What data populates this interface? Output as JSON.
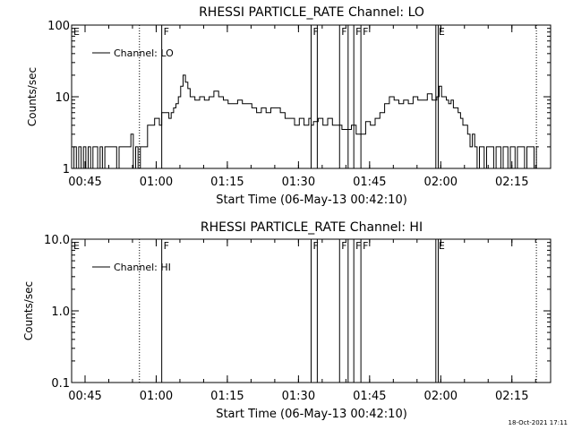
{
  "footer": {
    "timestamp": "18-Oct-2021 17:11"
  },
  "chart_data": [
    {
      "type": "line",
      "title": "RHESSI PARTICLE_RATE Channel: LO",
      "xlabel": "Start Time (06-May-13 00:42:10)",
      "ylabel": "Counts/sec",
      "yscale": "log",
      "ylim": [
        1,
        100
      ],
      "xlim_minutes": [
        0.0,
        101.0
      ],
      "xticks": [
        "00:45",
        "01:00",
        "01:15",
        "01:30",
        "01:45",
        "02:00",
        "02:15"
      ],
      "yticks": [
        "1",
        "10",
        "100"
      ],
      "legend": {
        "entries": [
          "Channel: LO"
        ],
        "placement": "top-left"
      },
      "markers": {
        "E": [
          0.0,
          77.0
        ],
        "F": [
          19.0,
          50.5,
          56.5,
          59.5,
          61.0
        ],
        "dotted_lines": [
          14.3,
          98.0
        ],
        "solid_lines": [
          19.0,
          50.5,
          51.8,
          56.5,
          58.3,
          59.5,
          61.0,
          76.8,
          77.3
        ]
      },
      "series": [
        {
          "name": "Channel: LO",
          "x": [
            0.0,
            0.5,
            1.0,
            1.5,
            2.0,
            2.5,
            3.0,
            3.5,
            4.0,
            4.5,
            5.0,
            5.5,
            6.0,
            6.5,
            7.0,
            7.5,
            8.0,
            8.5,
            9.0,
            9.5,
            10.0,
            10.5,
            11.0,
            11.5,
            12.0,
            12.5,
            13.0,
            13.5,
            14.0,
            14.5,
            15.0,
            15.5,
            16.0,
            16.5,
            17.0,
            17.5,
            18.0,
            18.5,
            19.0,
            19.5,
            20.0,
            20.5,
            21.0,
            21.5,
            22.0,
            22.5,
            23.0,
            23.5,
            24.0,
            24.5,
            25.0,
            26.0,
            27.0,
            28.0,
            29.0,
            30.0,
            31.0,
            32.0,
            33.0,
            34.0,
            35.0,
            36.0,
            37.0,
            38.0,
            39.0,
            40.0,
            41.0,
            42.0,
            43.0,
            44.0,
            45.0,
            46.0,
            47.0,
            48.0,
            49.0,
            50.0,
            50.5,
            51.0,
            52.0,
            53.0,
            54.0,
            55.0,
            56.0,
            57.0,
            58.0,
            59.0,
            60.0,
            61.0,
            62.0,
            63.0,
            64.0,
            65.0,
            66.0,
            67.0,
            68.0,
            69.0,
            70.0,
            71.0,
            72.0,
            73.0,
            74.0,
            75.0,
            76.0,
            77.0,
            77.5,
            78.0,
            78.5,
            79.0,
            79.5,
            80.0,
            80.5,
            81.0,
            81.5,
            82.0,
            82.5,
            83.0,
            83.5,
            84.0,
            84.5,
            85.0,
            85.5,
            86.0,
            86.5,
            87.0,
            87.5,
            88.0,
            88.5,
            89.0,
            89.5,
            90.0,
            90.5,
            91.0,
            91.5,
            92.0,
            92.5,
            93.0,
            93.5,
            94.0,
            94.5,
            95.0,
            95.5,
            96.0,
            96.5,
            97.0,
            97.5,
            98.0
          ],
          "values": [
            1.0,
            2.0,
            1.0,
            2.0,
            1.0,
            2.0,
            1.0,
            2.0,
            1.0,
            2.0,
            2.0,
            1.0,
            2.0,
            1.0,
            2.0,
            2.0,
            2.0,
            2.0,
            2.0,
            1.0,
            2.0,
            2.0,
            2.0,
            2.0,
            2.0,
            3.0,
            1.0,
            2.0,
            1.0,
            2.0,
            2.0,
            2.0,
            4.0,
            4.0,
            4.0,
            5.0,
            5.0,
            4.0,
            6.0,
            6.0,
            6.0,
            5.0,
            6.0,
            7.0,
            8.0,
            10.0,
            14.0,
            20.0,
            16.0,
            13.0,
            10.0,
            9.0,
            10.0,
            9.0,
            10.0,
            12.0,
            10.0,
            9.0,
            8.0,
            8.0,
            9.0,
            8.0,
            8.0,
            7.0,
            6.0,
            7.0,
            6.0,
            7.0,
            7.0,
            6.0,
            5.0,
            5.0,
            4.0,
            5.0,
            4.0,
            5.0,
            4.0,
            4.5,
            5.0,
            4.0,
            5.0,
            4.0,
            4.0,
            3.5,
            3.5,
            4.0,
            3.0,
            3.0,
            4.5,
            4.0,
            5.0,
            6.0,
            8.0,
            10.0,
            9.0,
            8.0,
            9.0,
            8.0,
            10.0,
            9.0,
            9.0,
            11.0,
            9.0,
            10.0,
            14.0,
            10.0,
            10.0,
            9.0,
            8.0,
            9.0,
            7.0,
            7.0,
            6.0,
            5.0,
            4.0,
            4.0,
            3.0,
            2.0,
            3.0,
            2.0,
            1.0,
            2.0,
            2.0,
            1.0,
            2.0,
            2.0,
            2.0,
            1.0,
            2.0,
            2.0,
            1.0,
            2.0,
            2.0,
            1.0,
            2.0,
            2.0,
            1.0,
            2.0,
            2.0,
            2.0,
            1.0,
            2.0,
            2.0,
            2.0,
            1.0,
            2.0
          ]
        }
      ]
    },
    {
      "type": "line",
      "title": "RHESSI PARTICLE_RATE Channel: HI",
      "xlabel": "Start Time (06-May-13 00:42:10)",
      "ylabel": "Counts/sec",
      "yscale": "log",
      "ylim": [
        0.1,
        10.0
      ],
      "xlim_minutes": [
        0.0,
        101.0
      ],
      "xticks": [
        "00:45",
        "01:00",
        "01:15",
        "01:30",
        "01:45",
        "02:00",
        "02:15"
      ],
      "yticks": [
        "0.1",
        "1.0",
        "10.0"
      ],
      "legend": {
        "entries": [
          "Channel: HI"
        ],
        "placement": "top-left"
      },
      "markers": {
        "E": [
          0.0,
          77.0
        ],
        "F": [
          19.0,
          50.5,
          56.5,
          59.5,
          61.0
        ],
        "dotted_lines": [
          14.3,
          98.0
        ],
        "solid_lines": [
          19.0,
          50.5,
          51.8,
          56.5,
          58.3,
          59.5,
          61.0,
          76.8,
          77.3
        ]
      },
      "series": [
        {
          "name": "Channel: HI",
          "x": [],
          "values": []
        }
      ]
    }
  ]
}
